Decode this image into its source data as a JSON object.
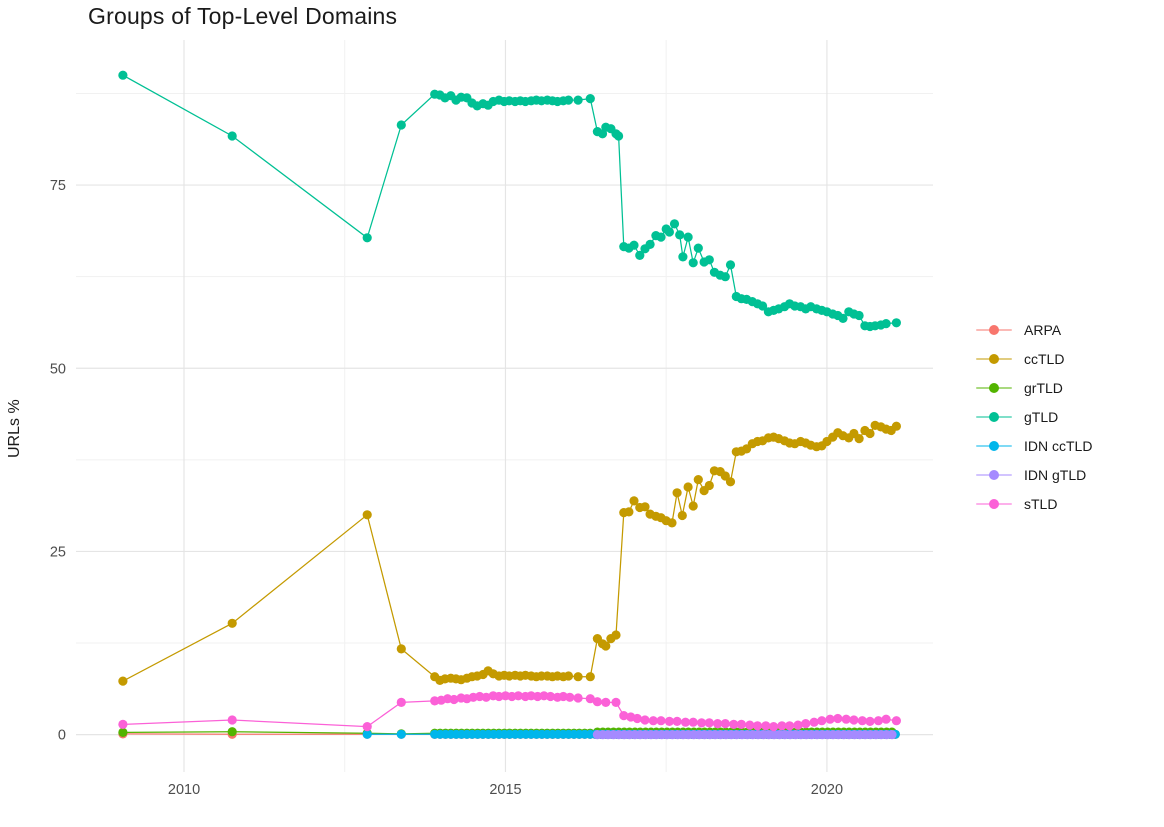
{
  "chart_data": {
    "type": "line",
    "title": "Groups of Top-Level Domains",
    "xlabel": "",
    "ylabel": "URLs %",
    "x_ticks": [
      2010,
      2015,
      2020
    ],
    "x_minor_ticks": [
      2012.5,
      2017.5
    ],
    "y_ticks": [
      0,
      25,
      50,
      75
    ],
    "y_minor_ticks": [
      12.5,
      37.5,
      62.5,
      87.5
    ],
    "xlim": [
      2008.32,
      2021.65
    ],
    "ylim": [
      -5.1,
      94.8
    ],
    "grid": "major+minor",
    "legend_position": "right",
    "style": {
      "grid_major": "#e5e5e5",
      "grid_minor": "#f1f1f1",
      "tick_label_color": "#4d4d4d",
      "text_color": "#1a1a1a",
      "background": "#ffffff"
    },
    "series": [
      {
        "name": "ARPA",
        "color": "#F8766D",
        "points": [
          [
            2009.05,
            0.1
          ],
          [
            2010.75,
            0.05
          ],
          [
            2012.85,
            0.05
          ],
          [
            2013.38,
            0.05
          ]
        ],
        "runs": [
          [
            2013.9,
            2021.08,
            0.0833,
            0.03
          ]
        ]
      },
      {
        "name": "ccTLD",
        "color": "#C49A00",
        "points": [
          [
            2009.05,
            7.3
          ],
          [
            2010.75,
            15.2
          ],
          [
            2012.85,
            30.0
          ],
          [
            2013.38,
            11.7
          ],
          [
            2013.9,
            7.9
          ],
          [
            2013.98,
            7.4
          ],
          [
            2014.06,
            7.6
          ],
          [
            2014.15,
            7.7
          ],
          [
            2014.23,
            7.6
          ],
          [
            2014.31,
            7.5
          ],
          [
            2014.4,
            7.7
          ],
          [
            2014.48,
            7.9
          ],
          [
            2014.56,
            8.0
          ],
          [
            2014.65,
            8.2
          ],
          [
            2014.73,
            8.7
          ],
          [
            2014.81,
            8.3
          ],
          [
            2014.9,
            8.0
          ],
          [
            2014.98,
            8.1
          ],
          [
            2015.06,
            8.0
          ],
          [
            2015.15,
            8.1
          ],
          [
            2015.23,
            8.0
          ],
          [
            2015.31,
            8.1
          ],
          [
            2015.4,
            8.0
          ],
          [
            2015.48,
            7.9
          ],
          [
            2015.56,
            8.0
          ],
          [
            2015.65,
            8.0
          ],
          [
            2015.73,
            7.9
          ],
          [
            2015.81,
            8.0
          ],
          [
            2015.9,
            7.9
          ],
          [
            2015.98,
            8.0
          ],
          [
            2016.13,
            7.9
          ],
          [
            2016.32,
            7.9
          ],
          [
            2016.43,
            13.1
          ],
          [
            2016.51,
            12.4
          ],
          [
            2016.56,
            12.1
          ],
          [
            2016.64,
            13.1
          ],
          [
            2016.72,
            13.6
          ],
          [
            2016.84,
            30.3
          ],
          [
            2016.92,
            30.4
          ],
          [
            2017.0,
            31.9
          ],
          [
            2017.09,
            31.0
          ],
          [
            2017.17,
            31.1
          ],
          [
            2017.25,
            30.1
          ],
          [
            2017.34,
            29.8
          ],
          [
            2017.42,
            29.6
          ],
          [
            2017.5,
            29.2
          ],
          [
            2017.59,
            28.9
          ],
          [
            2017.67,
            33.0
          ],
          [
            2017.75,
            29.9
          ],
          [
            2017.84,
            33.8
          ],
          [
            2017.92,
            31.2
          ],
          [
            2018.0,
            34.8
          ],
          [
            2018.09,
            33.3
          ],
          [
            2018.17,
            34.0
          ],
          [
            2018.25,
            36.0
          ],
          [
            2018.34,
            35.9
          ],
          [
            2018.42,
            35.3
          ],
          [
            2018.5,
            34.5
          ],
          [
            2018.59,
            38.6
          ],
          [
            2018.67,
            38.7
          ],
          [
            2018.75,
            39.0
          ],
          [
            2018.84,
            39.7
          ],
          [
            2018.92,
            40.0
          ],
          [
            2019.0,
            40.1
          ],
          [
            2019.09,
            40.5
          ],
          [
            2019.17,
            40.6
          ],
          [
            2019.25,
            40.4
          ],
          [
            2019.34,
            40.1
          ],
          [
            2019.42,
            39.8
          ],
          [
            2019.5,
            39.7
          ],
          [
            2019.59,
            40.0
          ],
          [
            2019.67,
            39.8
          ],
          [
            2019.75,
            39.5
          ],
          [
            2019.84,
            39.3
          ],
          [
            2019.92,
            39.4
          ],
          [
            2020.0,
            40.0
          ],
          [
            2020.09,
            40.6
          ],
          [
            2020.17,
            41.2
          ],
          [
            2020.25,
            40.8
          ],
          [
            2020.34,
            40.5
          ],
          [
            2020.42,
            41.1
          ],
          [
            2020.5,
            40.4
          ],
          [
            2020.59,
            41.5
          ],
          [
            2020.67,
            41.1
          ],
          [
            2020.75,
            42.2
          ],
          [
            2020.84,
            42.0
          ],
          [
            2020.92,
            41.7
          ],
          [
            2021.0,
            41.5
          ],
          [
            2021.08,
            42.1
          ]
        ],
        "runs": []
      },
      {
        "name": "grTLD",
        "color": "#53B400",
        "points": [
          [
            2009.05,
            0.3
          ],
          [
            2010.75,
            0.4
          ],
          [
            2012.85,
            0.2
          ],
          [
            2013.38,
            0.1
          ]
        ],
        "runs": [
          [
            2013.9,
            2016.32,
            0.0833,
            0.2
          ],
          [
            2016.43,
            2021.08,
            0.0833,
            0.35
          ]
        ]
      },
      {
        "name": "gTLD",
        "color": "#00C094",
        "points": [
          [
            2009.05,
            90.0
          ],
          [
            2010.75,
            81.7
          ],
          [
            2012.85,
            67.8
          ],
          [
            2013.38,
            83.2
          ],
          [
            2013.9,
            87.4
          ],
          [
            2013.98,
            87.3
          ],
          [
            2014.06,
            86.9
          ],
          [
            2014.15,
            87.2
          ],
          [
            2014.23,
            86.6
          ],
          [
            2014.31,
            87.0
          ],
          [
            2014.4,
            86.9
          ],
          [
            2014.48,
            86.2
          ],
          [
            2014.56,
            85.8
          ],
          [
            2014.65,
            86.1
          ],
          [
            2014.73,
            85.9
          ],
          [
            2014.81,
            86.4
          ],
          [
            2014.9,
            86.6
          ],
          [
            2014.98,
            86.4
          ],
          [
            2015.06,
            86.5
          ],
          [
            2015.15,
            86.4
          ],
          [
            2015.23,
            86.5
          ],
          [
            2015.31,
            86.4
          ],
          [
            2015.4,
            86.5
          ],
          [
            2015.48,
            86.6
          ],
          [
            2015.56,
            86.5
          ],
          [
            2015.65,
            86.6
          ],
          [
            2015.73,
            86.5
          ],
          [
            2015.81,
            86.4
          ],
          [
            2015.9,
            86.5
          ],
          [
            2015.98,
            86.6
          ],
          [
            2016.13,
            86.6
          ],
          [
            2016.32,
            86.8
          ],
          [
            2016.43,
            82.3
          ],
          [
            2016.51,
            82.0
          ],
          [
            2016.56,
            82.9
          ],
          [
            2016.64,
            82.7
          ],
          [
            2016.72,
            82.0
          ],
          [
            2016.76,
            81.7
          ],
          [
            2016.84,
            66.6
          ],
          [
            2016.92,
            66.4
          ],
          [
            2017.0,
            66.8
          ],
          [
            2017.09,
            65.4
          ],
          [
            2017.17,
            66.3
          ],
          [
            2017.25,
            66.9
          ],
          [
            2017.34,
            68.1
          ],
          [
            2017.42,
            67.9
          ],
          [
            2017.5,
            69.0
          ],
          [
            2017.55,
            68.6
          ],
          [
            2017.63,
            69.7
          ],
          [
            2017.71,
            68.2
          ],
          [
            2017.76,
            65.2
          ],
          [
            2017.84,
            67.9
          ],
          [
            2017.92,
            64.4
          ],
          [
            2018.0,
            66.4
          ],
          [
            2018.09,
            64.5
          ],
          [
            2018.17,
            64.8
          ],
          [
            2018.25,
            63.1
          ],
          [
            2018.34,
            62.7
          ],
          [
            2018.42,
            62.5
          ],
          [
            2018.5,
            64.1
          ],
          [
            2018.59,
            59.8
          ],
          [
            2018.67,
            59.5
          ],
          [
            2018.75,
            59.4
          ],
          [
            2018.84,
            59.1
          ],
          [
            2018.92,
            58.8
          ],
          [
            2019.0,
            58.5
          ],
          [
            2019.09,
            57.7
          ],
          [
            2019.17,
            57.9
          ],
          [
            2019.25,
            58.1
          ],
          [
            2019.34,
            58.4
          ],
          [
            2019.42,
            58.8
          ],
          [
            2019.5,
            58.5
          ],
          [
            2019.59,
            58.4
          ],
          [
            2019.67,
            58.1
          ],
          [
            2019.75,
            58.4
          ],
          [
            2019.84,
            58.1
          ],
          [
            2019.92,
            57.9
          ],
          [
            2020.0,
            57.7
          ],
          [
            2020.09,
            57.4
          ],
          [
            2020.17,
            57.2
          ],
          [
            2020.25,
            56.8
          ],
          [
            2020.34,
            57.7
          ],
          [
            2020.42,
            57.4
          ],
          [
            2020.5,
            57.2
          ],
          [
            2020.59,
            55.8
          ],
          [
            2020.67,
            55.7
          ],
          [
            2020.75,
            55.8
          ],
          [
            2020.84,
            55.9
          ],
          [
            2020.92,
            56.1
          ],
          [
            2021.08,
            56.2
          ]
        ],
        "runs": []
      },
      {
        "name": "IDN ccTLD",
        "color": "#00B6EB",
        "points": [
          [
            2012.85,
            0.05
          ],
          [
            2013.38,
            0.05
          ]
        ],
        "runs": [
          [
            2013.9,
            2021.08,
            0.0833,
            0.05
          ]
        ]
      },
      {
        "name": "IDN gTLD",
        "color": "#A58AFF",
        "points": [],
        "runs": [
          [
            2016.43,
            2021.08,
            0.0833,
            0.0
          ]
        ]
      },
      {
        "name": "sTLD",
        "color": "#FB61D7",
        "points": [
          [
            2009.05,
            1.4
          ],
          [
            2010.75,
            2.0
          ],
          [
            2012.85,
            1.1
          ],
          [
            2013.38,
            4.4
          ],
          [
            2013.9,
            4.6
          ],
          [
            2014.0,
            4.7
          ],
          [
            2014.1,
            4.9
          ],
          [
            2014.2,
            4.8
          ],
          [
            2014.31,
            5.0
          ],
          [
            2014.4,
            4.9
          ],
          [
            2014.5,
            5.1
          ],
          [
            2014.6,
            5.2
          ],
          [
            2014.7,
            5.1
          ],
          [
            2014.81,
            5.3
          ],
          [
            2014.9,
            5.2
          ],
          [
            2015.0,
            5.3
          ],
          [
            2015.1,
            5.2
          ],
          [
            2015.2,
            5.3
          ],
          [
            2015.31,
            5.2
          ],
          [
            2015.4,
            5.3
          ],
          [
            2015.5,
            5.2
          ],
          [
            2015.6,
            5.3
          ],
          [
            2015.7,
            5.2
          ],
          [
            2015.81,
            5.1
          ],
          [
            2015.9,
            5.2
          ],
          [
            2016.0,
            5.1
          ],
          [
            2016.13,
            5.0
          ],
          [
            2016.32,
            4.9
          ],
          [
            2016.43,
            4.5
          ],
          [
            2016.56,
            4.4
          ],
          [
            2016.72,
            4.4
          ],
          [
            2016.84,
            2.6
          ],
          [
            2016.95,
            2.4
          ],
          [
            2017.05,
            2.2
          ],
          [
            2017.17,
            2.0
          ],
          [
            2017.3,
            1.9
          ],
          [
            2017.42,
            1.9
          ],
          [
            2017.55,
            1.8
          ],
          [
            2017.67,
            1.8
          ],
          [
            2017.8,
            1.7
          ],
          [
            2017.92,
            1.7
          ],
          [
            2018.05,
            1.6
          ],
          [
            2018.17,
            1.6
          ],
          [
            2018.3,
            1.5
          ],
          [
            2018.42,
            1.5
          ],
          [
            2018.55,
            1.4
          ],
          [
            2018.67,
            1.4
          ],
          [
            2018.8,
            1.3
          ],
          [
            2018.92,
            1.2
          ],
          [
            2019.05,
            1.2
          ],
          [
            2019.17,
            1.1
          ],
          [
            2019.3,
            1.2
          ],
          [
            2019.42,
            1.2
          ],
          [
            2019.55,
            1.3
          ],
          [
            2019.67,
            1.5
          ],
          [
            2019.8,
            1.7
          ],
          [
            2019.92,
            1.9
          ],
          [
            2020.05,
            2.1
          ],
          [
            2020.17,
            2.2
          ],
          [
            2020.3,
            2.1
          ],
          [
            2020.42,
            2.0
          ],
          [
            2020.55,
            1.9
          ],
          [
            2020.67,
            1.8
          ],
          [
            2020.8,
            1.9
          ],
          [
            2020.92,
            2.1
          ],
          [
            2021.08,
            1.9
          ]
        ],
        "runs": []
      }
    ]
  },
  "legend": {
    "items": [
      {
        "label": "ARPA"
      },
      {
        "label": "ccTLD"
      },
      {
        "label": "grTLD"
      },
      {
        "label": "gTLD"
      },
      {
        "label": "IDN ccTLD"
      },
      {
        "label": "IDN gTLD"
      },
      {
        "label": "sTLD"
      }
    ]
  }
}
